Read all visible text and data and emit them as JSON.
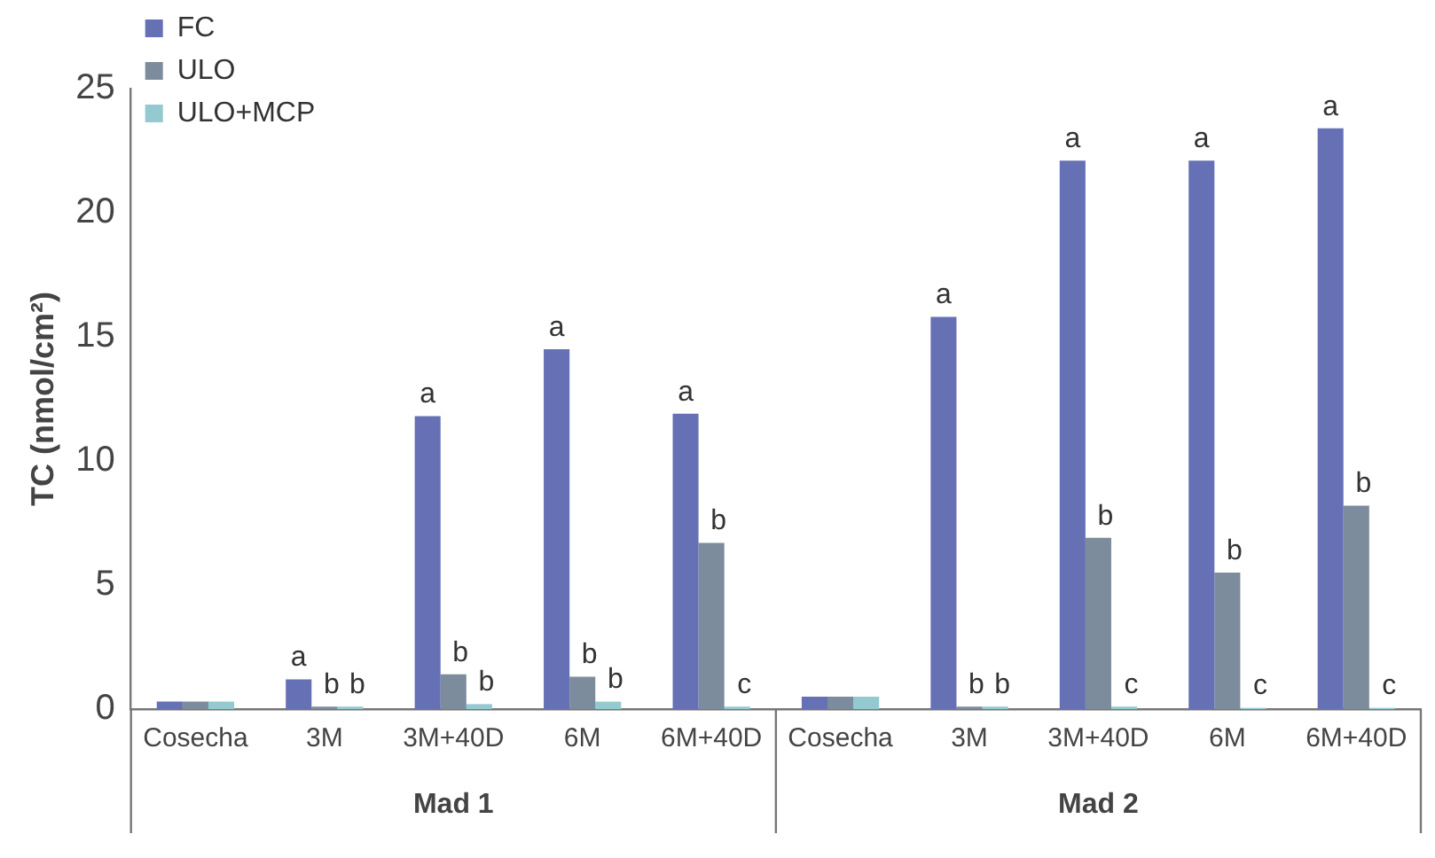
{
  "chart_data": {
    "type": "bar",
    "ylabel": "TC (nmol/cm²)",
    "categories": [
      "Cosecha",
      "3M",
      "3M+40D",
      "6M",
      "6M+40D",
      "Cosecha",
      "3M",
      "3M+40D",
      "6M",
      "6M+40D"
    ],
    "series": [
      {
        "name": "FC",
        "color": "#6570b5",
        "values": [
          0.3,
          1.2,
          11.8,
          14.5,
          11.9,
          0.5,
          15.8,
          22.1,
          22.1,
          23.4
        ],
        "value_labels": [
          null,
          "a",
          "a",
          "a",
          "a",
          null,
          "a",
          "a",
          "a",
          "a"
        ]
      },
      {
        "name": "ULO",
        "color": "#7d8c9c",
        "values": [
          0.3,
          0.1,
          1.4,
          1.3,
          6.7,
          0.5,
          0.1,
          6.9,
          5.5,
          8.2
        ],
        "value_labels": [
          null,
          "b",
          "b",
          "b",
          "b",
          null,
          "b",
          "b",
          "b",
          "b"
        ]
      },
      {
        "name": "ULO+MCP",
        "color": "#93c9cf",
        "values": [
          0.3,
          0.1,
          0.2,
          0.3,
          0.1,
          0.5,
          0.1,
          0.1,
          0.05,
          0.05
        ],
        "value_labels": [
          null,
          "b",
          "b",
          "b",
          "c",
          null,
          "b",
          "c",
          "c",
          "c"
        ]
      }
    ],
    "annotations": [
      "Mad 1",
      "Mad 2"
    ],
    "ylim": [
      0,
      25
    ],
    "yticks": [
      0,
      5,
      10,
      15,
      20,
      25
    ],
    "grid": false,
    "legend": "top left"
  }
}
